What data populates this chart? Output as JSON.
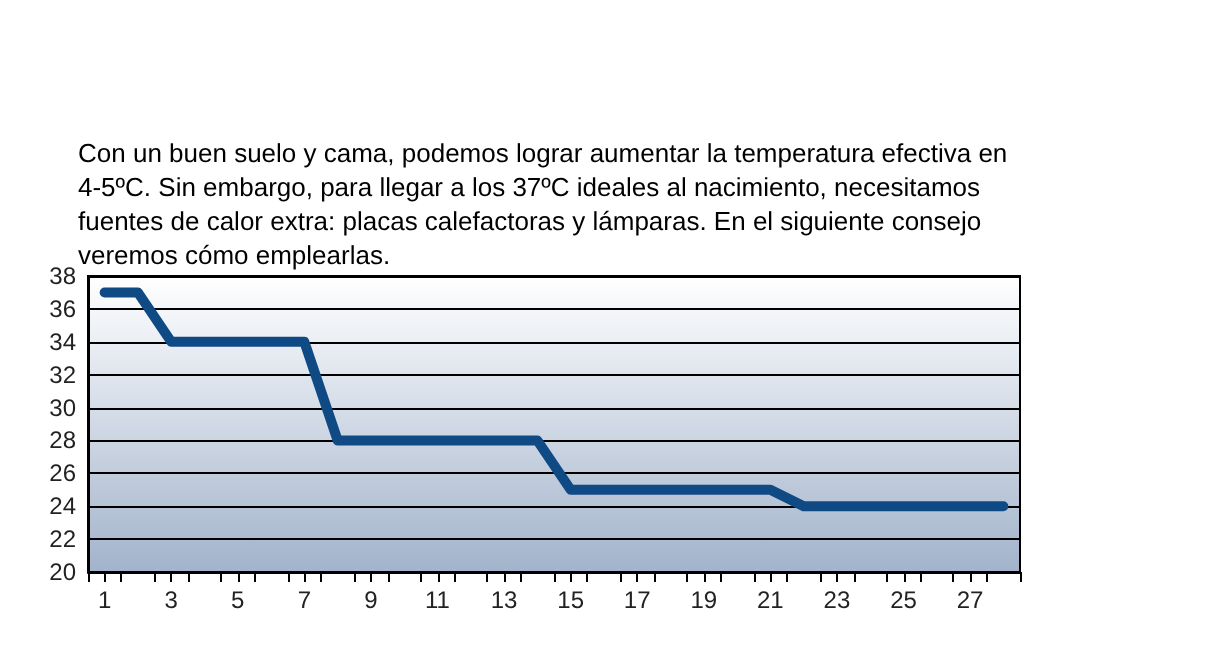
{
  "chart_data": {
    "type": "line",
    "title": "Con un buen suelo y cama, podemos lograr aumentar la temperatura efectiva en 4-5ºC. Sin embargo, para llegar a los 37ºC ideales al nacimiento, necesitamos fuentes de calor extra: placas calefactoras y lámparas. En el siguiente consejo veremos cómo emplearlas.",
    "x": [
      1,
      2,
      3,
      4,
      5,
      6,
      7,
      8,
      9,
      10,
      11,
      12,
      13,
      14,
      15,
      16,
      17,
      18,
      19,
      20,
      21,
      22,
      23,
      24,
      25,
      26,
      27,
      28
    ],
    "series": [
      {
        "color": "#0f4a85",
        "values": [
          37,
          37,
          34,
          34,
          34,
          34,
          34,
          28,
          28,
          28,
          28,
          28,
          28,
          28,
          25,
          25,
          25,
          25,
          25,
          25,
          25,
          24,
          24,
          24,
          24,
          24,
          24,
          24
        ]
      }
    ],
    "xlim": [
      0.5,
      28.5
    ],
    "xticks": [
      {
        "value": 0.5,
        "label": null
      },
      1,
      {
        "value": 1.5,
        "label": null
      },
      {
        "value": 2.5,
        "label": null
      },
      3,
      {
        "value": 3.5,
        "label": null
      },
      {
        "value": 4.5,
        "label": null
      },
      5,
      {
        "value": 5.5,
        "label": null
      },
      {
        "value": 6.5,
        "label": null
      },
      7,
      {
        "value": 7.5,
        "label": null
      },
      {
        "value": 8.5,
        "label": null
      },
      9,
      {
        "value": 9.5,
        "label": null
      },
      {
        "value": 10.5,
        "label": null
      },
      11,
      {
        "value": 11.5,
        "label": null
      },
      {
        "value": 12.5,
        "label": null
      },
      13,
      {
        "value": 13.5,
        "label": null
      },
      {
        "value": 14.5,
        "label": null
      },
      15,
      {
        "value": 15.5,
        "label": null
      },
      {
        "value": 16.5,
        "label": null
      },
      17,
      {
        "value": 17.5,
        "label": null
      },
      {
        "value": 18.5,
        "label": null
      },
      19,
      {
        "value": 19.5,
        "label": null
      },
      {
        "value": 20.5,
        "label": null
      },
      21,
      {
        "value": 21.5,
        "label": null
      },
      {
        "value": 22.5,
        "label": null
      },
      23,
      {
        "value": 23.5,
        "label": null
      },
      {
        "value": 24.5,
        "label": null
      },
      25,
      {
        "value": 25.5,
        "label": null
      },
      {
        "value": 26.5,
        "label": null
      },
      27,
      {
        "value": 27.5,
        "label": null
      },
      {
        "value": 28.5,
        "label": null
      }
    ],
    "ylim": [
      20,
      38
    ],
    "yticks": [
      20,
      22,
      24,
      26,
      28,
      30,
      32,
      34,
      36,
      38
    ],
    "grid": "y",
    "marker": "none",
    "line_style": "solid"
  }
}
